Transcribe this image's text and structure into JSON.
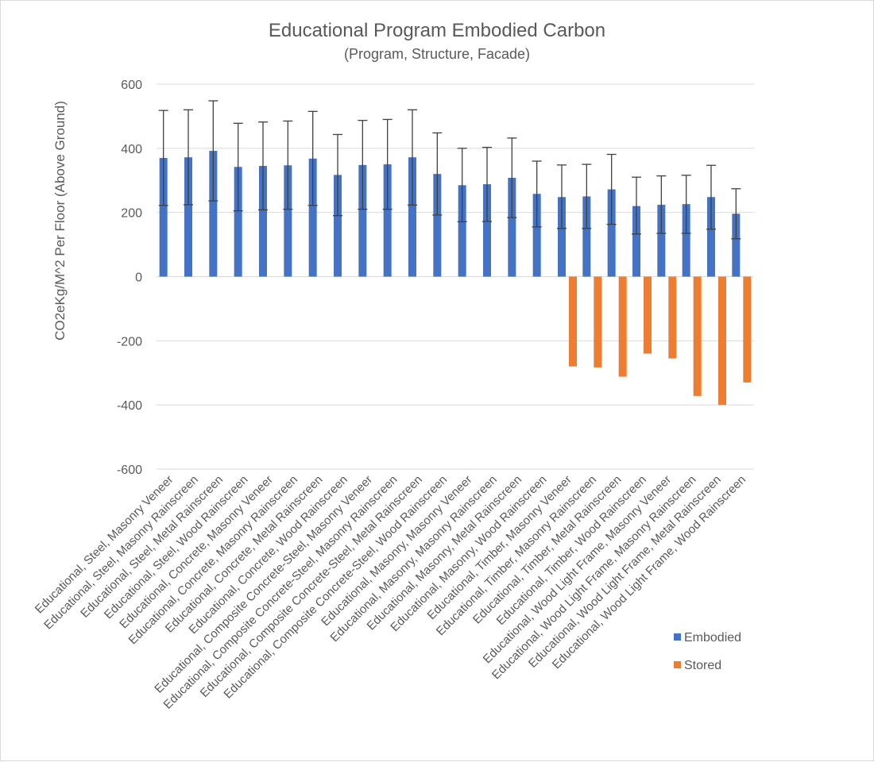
{
  "chart_data": {
    "type": "bar",
    "title": "Educational Program Embodied Carbon",
    "subtitle": "(Program, Structure, Facade)",
    "xlabel": "",
    "ylabel": "CO2eKg/M^2 Per Floor (Above Ground)",
    "ylim": [
      -600,
      600
    ],
    "yticks": [
      600,
      400,
      200,
      0,
      -200,
      -400,
      -600
    ],
    "grid": true,
    "legend_position": "bottom-right",
    "categories": [
      "Educational, Steel, Masonry Veneer",
      "Educational, Steel, Masonry Rainscreen",
      "Educational, Steel, Metal Rainscreen",
      "Educational, Steel, Wood Rainscreen",
      "Educational, Concrete, Masonry Veneer",
      "Educational, Concrete, Masonry Rainscreen",
      "Educational, Concrete, Metal Rainscreen",
      "Educational, Concrete, Wood Rainscreen",
      "Educational, Composite Concrete-Steel, Masonry Veneer",
      "Educational, Composite Concrete-Steel, Masonry Rainscreen",
      "Educational, Composite Concrete-Steel, Metal Rainscreen",
      "Educational, Composite Concrete-Steel, Wood Rainscreen",
      "Educational, Masonry, Masonry Veneer",
      "Educational, Masonry, Masonry Rainscreen",
      "Educational, Masonry, Metal Rainscreen",
      "Educational, Masonry, Wood Rainscreen",
      "Educational, Timber, Masonry Veneer",
      "Educational, Timber, Masonry Rainscreen",
      "Educational, Timber, Metal Rainscreen",
      "Educational, Timber, Wood Rainscreen",
      "Educational, Wood Light Frame, Masonry Veneer",
      "Educational, Wood Light Frame, Masonry Rainscreen",
      "Educational, Wood Light Frame, Metal Rainscreen",
      "Educational, Wood Light Frame, Wood Rainscreen"
    ],
    "series": [
      {
        "name": "Embodied",
        "color": "#4472c4",
        "values": [
          370,
          372,
          392,
          342,
          345,
          347,
          368,
          317,
          348,
          350,
          372,
          320,
          285,
          288,
          308,
          258,
          248,
          250,
          272,
          220,
          224,
          226,
          248,
          196
        ],
        "error_low": [
          222,
          224,
          236,
          205,
          208,
          210,
          222,
          190,
          210,
          210,
          223,
          192,
          171,
          172,
          184,
          155,
          150,
          150,
          163,
          133,
          135,
          135,
          148,
          118
        ],
        "error_high": [
          518,
          520,
          548,
          478,
          482,
          485,
          515,
          443,
          487,
          490,
          520,
          448,
          400,
          403,
          432,
          360,
          348,
          350,
          381,
          310,
          314,
          316,
          347,
          274
        ]
      },
      {
        "name": "Stored",
        "color": "#ed7d31",
        "values": [
          0,
          0,
          0,
          0,
          0,
          0,
          0,
          0,
          0,
          0,
          0,
          0,
          0,
          0,
          0,
          0,
          -280,
          -283,
          -312,
          -240,
          -255,
          -372,
          -400,
          -330
        ]
      }
    ]
  }
}
